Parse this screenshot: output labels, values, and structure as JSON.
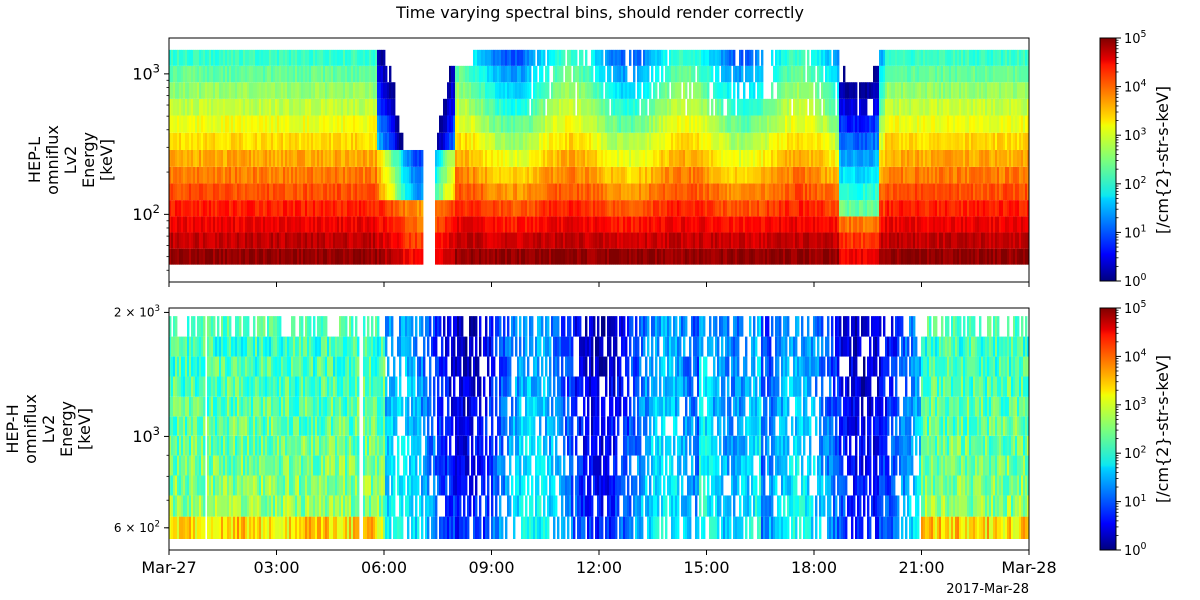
{
  "chart_data": {
    "type": "heatmap",
    "title": "Time varying spectral bins, should render correctly",
    "x_ticks": [
      "Mar-27",
      "03:00",
      "06:00",
      "09:00",
      "12:00",
      "15:00",
      "18:00",
      "21:00",
      "Mar-28"
    ],
    "x_range_hours": [
      0,
      24
    ],
    "x_footer": "2017-Mar-28",
    "colormap": "jet",
    "panels": [
      {
        "ylabel": [
          "HEP-L",
          "omniflux",
          "Lv2",
          "Energy",
          "[keV]"
        ],
        "yscale": "log",
        "ylim_kev": [
          33,
          1800
        ],
        "y_ticks": [
          {
            "value": 100,
            "base": "10",
            "exp": "2"
          },
          {
            "value": 1000,
            "base": "10",
            "exp": "3"
          }
        ],
        "energy_bins_kev": [
          50,
          65,
          85,
          110,
          145,
          190,
          250,
          330,
          440,
          580,
          760,
          1000,
          1300
        ],
        "colorbar": {
          "label": "[/cm{2}-str-s-keV]",
          "scale": "log",
          "min": 1,
          "max": 100000,
          "ticks": [
            {
              "value": 1,
              "exp": "0"
            },
            {
              "value": 10,
              "exp": "1"
            },
            {
              "value": 100,
              "exp": "2"
            },
            {
              "value": 1000,
              "exp": "3"
            },
            {
              "value": 10000,
              "exp": "4"
            },
            {
              "value": 100000,
              "exp": "5"
            }
          ]
        }
      },
      {
        "ylabel": [
          "HEP-H",
          "omniflux",
          "Lv2",
          "Energy",
          "[keV]"
        ],
        "yscale": "log",
        "ylim_kev": [
          530,
          2050
        ],
        "y_ticks": [
          {
            "value": 600,
            "base": "6 × 10",
            "exp": "2"
          },
          {
            "value": 1000,
            "base": "10",
            "exp": "3"
          },
          {
            "value": 2000,
            "base": "2 × 10",
            "exp": "3"
          }
        ],
        "energy_bins_kev": [
          600,
          680,
          760,
          850,
          950,
          1060,
          1180,
          1320,
          1480,
          1650,
          1850
        ],
        "colorbar": {
          "label": "[/cm{2}-str-s-keV]",
          "scale": "log",
          "min": 1,
          "max": 100000,
          "ticks": [
            {
              "value": 1,
              "exp": "0"
            },
            {
              "value": 10,
              "exp": "1"
            },
            {
              "value": 100,
              "exp": "2"
            },
            {
              "value": 1000,
              "exp": "3"
            },
            {
              "value": 10000,
              "exp": "4"
            },
            {
              "value": 100000,
              "exp": "5"
            }
          ]
        }
      }
    ]
  }
}
